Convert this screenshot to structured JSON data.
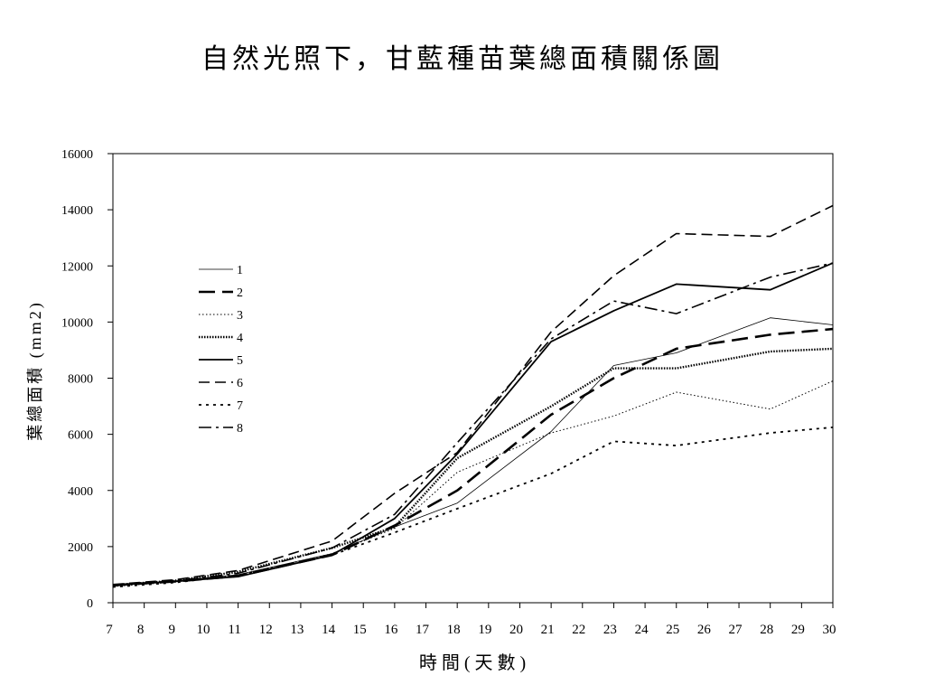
{
  "chart_data": {
    "type": "line",
    "title": "自然光照下，甘藍種苗葉總面積關係圖",
    "xlabel": "時 間 ( 天 數 )",
    "ylabel": "葉總面積 (mm2)",
    "xlim": [
      7,
      30
    ],
    "ylim": [
      0,
      16000
    ],
    "x_ticks": [
      7,
      8,
      9,
      10,
      11,
      12,
      13,
      14,
      15,
      16,
      17,
      18,
      19,
      20,
      21,
      22,
      23,
      24,
      25,
      26,
      27,
      28,
      29,
      30
    ],
    "y_ticks": [
      0,
      2000,
      4000,
      6000,
      8000,
      10000,
      12000,
      14000,
      16000
    ],
    "grid": false,
    "legend_position": "left",
    "x": [
      7,
      9,
      11,
      14,
      16,
      18,
      21,
      23,
      25,
      28,
      30
    ],
    "series": [
      {
        "name": "1",
        "values": [
          600,
          780,
          1000,
          1750,
          2700,
          3550,
          6100,
          8450,
          8900,
          10150,
          9900
        ]
      },
      {
        "name": "2",
        "values": [
          620,
          760,
          950,
          1700,
          2750,
          4000,
          6700,
          8000,
          9050,
          9550,
          9750
        ]
      },
      {
        "name": "3",
        "values": [
          580,
          740,
          980,
          1750,
          2650,
          4650,
          6050,
          6650,
          7500,
          6900,
          7900
        ]
      },
      {
        "name": "4",
        "values": [
          630,
          790,
          1100,
          1950,
          2700,
          5150,
          7000,
          8350,
          8350,
          8950,
          9050
        ]
      },
      {
        "name": "5",
        "values": [
          620,
          760,
          930,
          1700,
          3000,
          5300,
          9300,
          10400,
          11350,
          11150,
          12100
        ]
      },
      {
        "name": "6",
        "values": [
          650,
          820,
          1150,
          2200,
          3900,
          5350,
          9650,
          11650,
          13150,
          13050,
          14150
        ]
      },
      {
        "name": "7",
        "values": [
          560,
          720,
          980,
          1700,
          2500,
          3350,
          4600,
          5750,
          5600,
          6050,
          6250
        ]
      },
      {
        "name": "8",
        "values": [
          600,
          780,
          1050,
          1950,
          3150,
          5700,
          9400,
          10750,
          10300,
          11600,
          12100
        ]
      }
    ]
  }
}
